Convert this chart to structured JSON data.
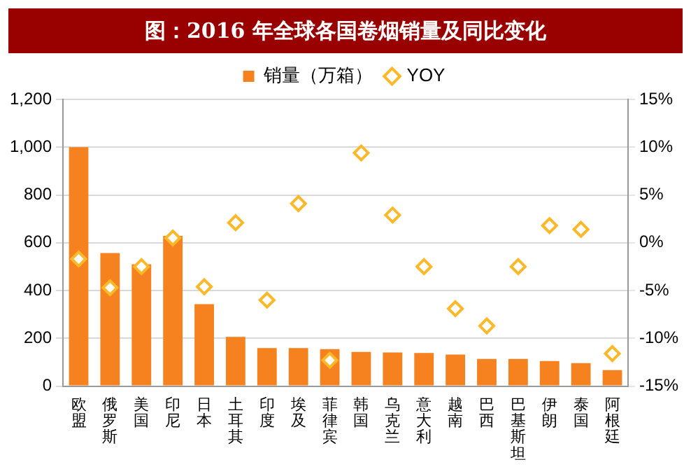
{
  "chart_data": {
    "type": "bar",
    "title": "图：2016 年全球各国卷烟销量及同比变化",
    "categories": [
      "欧盟",
      "俄罗斯",
      "美国",
      "印尼",
      "日本",
      "土耳其",
      "印度",
      "埃及",
      "菲律宾",
      "韩国",
      "乌克兰",
      "意大利",
      "越南",
      "巴西",
      "巴基斯坦",
      "伊朗",
      "泰国",
      "阿根廷"
    ],
    "series": [
      {
        "name": "销量（万箱）",
        "color": "#f5821f",
        "values": [
          1000,
          557,
          510,
          629,
          343,
          206,
          159,
          159,
          155,
          143,
          141,
          139,
          132,
          114,
          114,
          105,
          96,
          67
        ]
      },
      {
        "name": "YOY",
        "type": "scatter",
        "axis": "y2",
        "color": "#fbb829",
        "values": [
          -1.7,
          -4.7,
          -2.5,
          0.5,
          -4.6,
          2.1,
          -6.0,
          4.1,
          -12.3,
          9.4,
          2.9,
          -2.5,
          -6.9,
          -8.7,
          -2.5,
          1.8,
          1.4,
          -11.6
        ]
      }
    ],
    "marker": "diamond",
    "ylim": [
      0,
      1200
    ],
    "yticks": [
      0,
      200,
      400,
      600,
      800,
      {
        "value": 1000,
        "label": "1,000"
      },
      {
        "value": 1200,
        "label": "1,200"
      }
    ],
    "y2lim": [
      -15,
      15
    ],
    "y2ticks": [
      {
        "value": -15,
        "label": "-15%"
      },
      {
        "value": -10,
        "label": "-10%"
      },
      {
        "value": -5,
        "label": "-5%"
      },
      {
        "value": 0,
        "label": "0%"
      },
      {
        "value": 5,
        "label": "5%"
      },
      {
        "value": 10,
        "label": "10%"
      },
      {
        "value": 15,
        "label": "15%"
      }
    ],
    "grid": "y",
    "legend": "top"
  }
}
